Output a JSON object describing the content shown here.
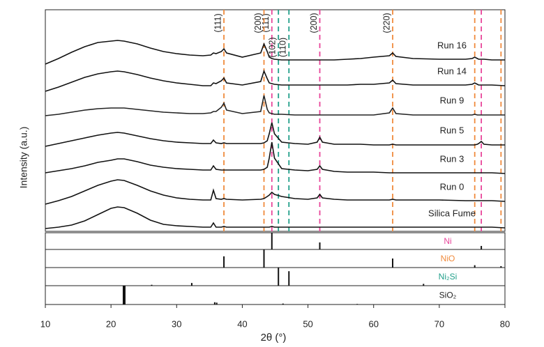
{
  "chart_data": {
    "type": "line",
    "x_label": "2θ (°)",
    "y_label": "Intensity (a.u.)",
    "xlim": [
      10,
      80
    ],
    "xticks": [
      10,
      20,
      30,
      40,
      50,
      60,
      70,
      80
    ],
    "ylim": [
      0,
      318
    ],
    "x": [
      10,
      12,
      14,
      16,
      18,
      20,
      21,
      22,
      24,
      26,
      28,
      30,
      32,
      34,
      35.2,
      35.6,
      36,
      36.8,
      37.2,
      37.6,
      40,
      42.8,
      43.3,
      43.8,
      44.1,
      44.5,
      44.9,
      46,
      48,
      50,
      51.4,
      51.8,
      52.2,
      54,
      56,
      58,
      60,
      62.4,
      62.9,
      63.4,
      66,
      70,
      74,
      75,
      75.4,
      75.8,
      76,
      76.4,
      76.8,
      78,
      80
    ],
    "series": [
      {
        "name": "Run 16",
        "color": "#111111",
        "values": [
          240,
          248,
          257,
          265,
          271,
          273,
          274,
          273,
          269,
          263,
          258,
          255,
          253,
          252,
          253,
          256,
          255,
          258,
          262,
          256,
          250,
          256,
          269,
          258,
          250,
          248,
          247,
          246,
          246,
          246,
          246,
          246,
          246,
          246,
          247,
          248,
          250,
          252,
          256,
          251,
          248,
          247,
          247,
          248,
          250,
          248,
          247,
          247,
          247,
          246,
          246
        ]
      },
      {
        "name": "Run 14",
        "color": "#111111",
        "values": [
          201,
          207,
          214,
          221,
          226,
          229,
          230,
          229,
          225,
          220,
          216,
          213,
          211,
          209,
          209,
          213,
          212,
          216,
          220,
          213,
          210,
          215,
          230,
          219,
          213,
          212,
          211,
          210,
          210,
          210,
          210,
          210,
          210,
          210,
          210,
          211,
          211,
          213,
          217,
          212,
          210,
          210,
          210,
          211,
          213,
          211,
          210,
          210,
          210,
          210,
          209
        ]
      },
      {
        "name": "Run 9",
        "color": "#222222",
        "values": [
          166,
          168,
          171,
          174,
          176,
          177,
          177,
          177,
          175,
          173,
          171,
          170,
          169,
          169,
          170,
          172,
          172,
          178,
          184,
          174,
          169,
          172,
          195,
          175,
          170,
          169,
          168,
          168,
          167,
          167,
          167,
          167,
          167,
          167,
          167,
          167,
          167,
          170,
          177,
          169,
          167,
          167,
          167,
          167,
          168,
          167,
          167,
          167,
          167,
          167,
          167
        ]
      },
      {
        "name": "Run 5",
        "color": "#111111",
        "values": [
          122,
          126,
          130,
          134,
          138,
          141,
          142,
          141,
          137,
          133,
          130,
          128,
          127,
          126,
          126,
          131,
          127,
          126,
          127,
          126,
          126,
          126,
          127,
          130,
          140,
          156,
          140,
          128,
          126,
          125,
          128,
          135,
          128,
          125,
          125,
          125,
          124,
          124,
          125,
          124,
          124,
          124,
          124,
          124,
          124,
          125,
          126,
          129,
          125,
          124,
          124
        ]
      },
      {
        "name": "Run 3",
        "color": "#111111",
        "values": [
          84,
          87,
          90,
          94,
          99,
          102,
          104,
          104,
          100,
          95,
          92,
          90,
          89,
          88,
          88,
          94,
          89,
          88,
          88,
          88,
          88,
          88,
          89,
          92,
          105,
          128,
          105,
          90,
          88,
          87,
          89,
          94,
          89,
          86,
          85,
          85,
          85,
          84,
          84,
          84,
          84,
          84,
          84,
          84,
          84,
          84,
          84,
          84,
          84,
          84,
          83
        ]
      },
      {
        "name": "Run 0",
        "color": "#111111",
        "values": [
          39,
          44,
          50,
          58,
          66,
          72,
          74,
          73,
          66,
          58,
          52,
          48,
          46,
          45,
          45,
          59,
          47,
          46,
          47,
          46,
          45,
          46,
          47,
          50,
          52,
          56,
          53,
          50,
          47,
          46,
          48,
          53,
          48,
          46,
          45,
          45,
          45,
          45,
          46,
          45,
          45,
          45,
          44,
          44,
          44,
          44,
          44,
          44,
          44,
          44,
          43
        ]
      },
      {
        "name": "Silica Fume",
        "color": "#111111",
        "values": [
          4,
          6,
          9,
          15,
          24,
          33,
          35,
          34,
          26,
          16,
          10,
          8,
          7,
          6,
          6,
          12,
          6,
          6,
          7,
          6,
          6,
          6,
          6,
          6,
          6,
          7,
          6,
          6,
          6,
          6,
          6,
          6,
          6,
          6,
          6,
          6,
          6,
          6,
          6,
          6,
          6,
          6,
          6,
          6,
          6,
          6,
          6,
          6,
          6,
          6,
          5
        ]
      }
    ],
    "phases": [
      {
        "name": "Ni",
        "color": "#e8459a",
        "stick_ylim": [
          0,
          100
        ],
        "lines": [
          44.5,
          51.8,
          76.4
        ],
        "labels": [
          "(111)",
          "(200)",
          null
        ],
        "stick_x": [
          44.5,
          51.8,
          76.4
        ],
        "stick_values": [
          100,
          42,
          21
        ]
      },
      {
        "name": "NiO",
        "color": "#f08a3c",
        "stick_ylim": [
          0,
          100
        ],
        "lines": [
          37.2,
          43.3,
          62.9,
          75.4,
          79.4
        ],
        "labels": [
          "(111)",
          "(200)",
          "(220)",
          null,
          null
        ],
        "stick_x": [
          37.2,
          43.3,
          62.9,
          75.4,
          79.4
        ],
        "stick_values": [
          62,
          100,
          50,
          13,
          8
        ]
      },
      {
        "name": "Ni₂Si",
        "color": "#1f9e89",
        "stick_ylim": [
          0,
          100
        ],
        "lines": [
          45.5,
          47.1
        ],
        "labels": [
          "(102)",
          "(110)"
        ],
        "stick_x": [
          26.2,
          32.3,
          45.5,
          47.1,
          67.6
        ],
        "stick_values": [
          5,
          15,
          100,
          80,
          10
        ]
      },
      {
        "name": "SiO₂",
        "color": "#222222",
        "stick_ylim": [
          0,
          100
        ],
        "lines": [],
        "labels": [],
        "stick_x": [
          22.0,
          35.8,
          36.1,
          46.2,
          57.5
        ],
        "stick_values": [
          100,
          12,
          10,
          5,
          3
        ]
      }
    ]
  }
}
